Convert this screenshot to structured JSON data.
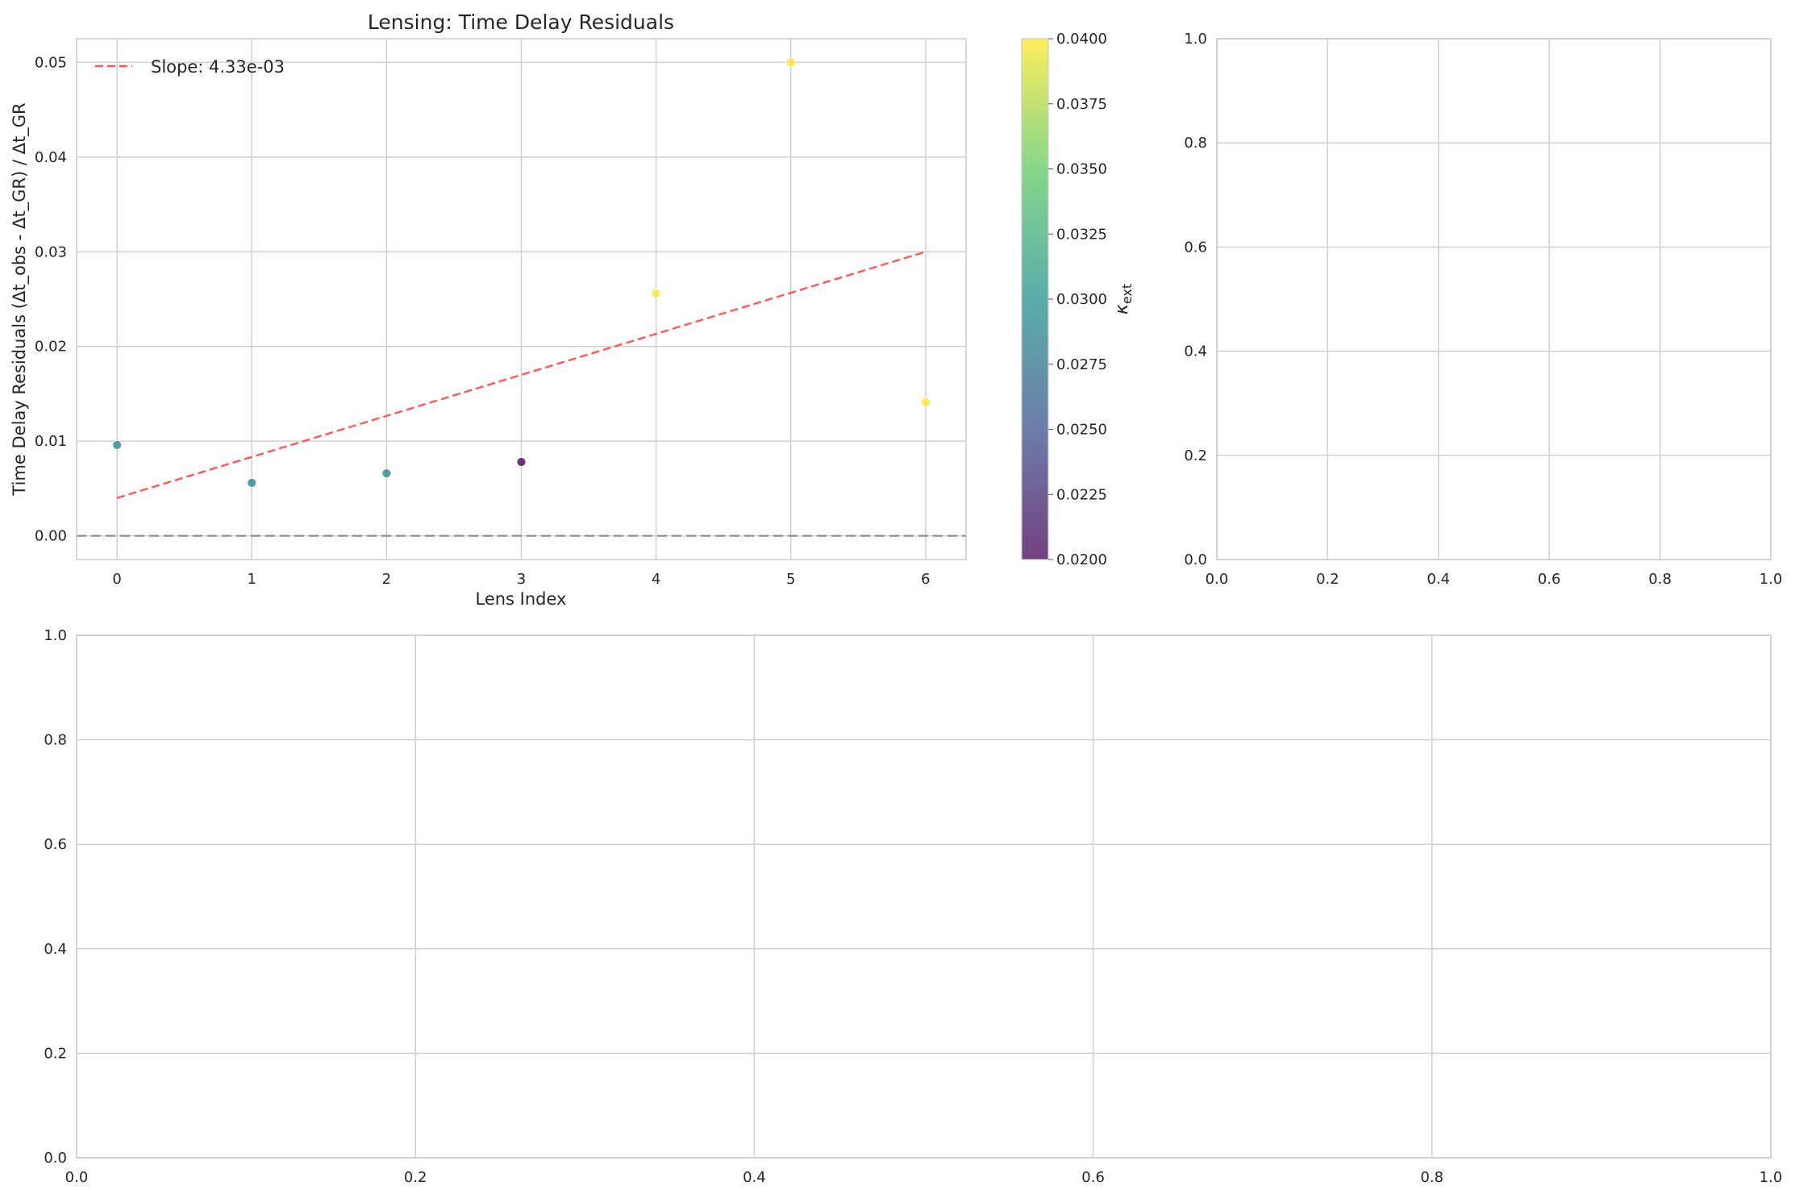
{
  "chart_data": [
    {
      "type": "scatter",
      "title": "Lensing: Time Delay Residuals",
      "xlabel": "Lens Index",
      "ylabel": "Time Delay Residuals (Δt_obs - Δt_GR) / Δt_GR",
      "xlim": [
        -0.3,
        6.3
      ],
      "ylim": [
        -0.0025,
        0.0525
      ],
      "xticks": [
        "0",
        "1",
        "2",
        "3",
        "4",
        "5",
        "6"
      ],
      "yticks": [
        "0.00",
        "0.01",
        "0.02",
        "0.03",
        "0.04",
        "0.05"
      ],
      "grid": true,
      "legend_position": "top-left",
      "points": [
        {
          "x": 0,
          "y": 0.0096,
          "kappa_ext": 0.029
        },
        {
          "x": 1,
          "y": 0.0056,
          "kappa_ext": 0.029
        },
        {
          "x": 2,
          "y": 0.0066,
          "kappa_ext": 0.029
        },
        {
          "x": 3,
          "y": 0.0078,
          "kappa_ext": 0.02
        },
        {
          "x": 4,
          "y": 0.0256,
          "kappa_ext": 0.04
        },
        {
          "x": 5,
          "y": 0.05,
          "kappa_ext": 0.04
        },
        {
          "x": 6,
          "y": 0.0141,
          "kappa_ext": 0.04
        }
      ],
      "fit_line": {
        "label": "Slope: 4.33e-03",
        "x": [
          0,
          6
        ],
        "y": [
          0.004,
          0.03
        ],
        "color": "#ff3b3b"
      },
      "reference_line": {
        "y": 0.0,
        "color": "#808080"
      },
      "colorbar": {
        "label": "κ_ext",
        "range": [
          0.02,
          0.04
        ],
        "ticks": [
          "0.0200",
          "0.0225",
          "0.0250",
          "0.0275",
          "0.0300",
          "0.0325",
          "0.0350",
          "0.0375",
          "0.0400"
        ],
        "colormap": [
          "#440154",
          "#3b528b",
          "#21918c",
          "#5ec962",
          "#fde725"
        ]
      }
    },
    {
      "type": "scatter",
      "title": "",
      "xlabel": "",
      "ylabel": "",
      "xlim": [
        0,
        1
      ],
      "ylim": [
        0,
        1
      ],
      "xticks": [
        "0.0",
        "0.2",
        "0.4",
        "0.6",
        "0.8",
        "1.0"
      ],
      "yticks": [
        "0.0",
        "0.2",
        "0.4",
        "0.6",
        "0.8",
        "1.0"
      ],
      "grid": true,
      "points": []
    },
    {
      "type": "scatter",
      "title": "",
      "xlabel": "",
      "ylabel": "",
      "xlim": [
        0,
        1
      ],
      "ylim": [
        0,
        1
      ],
      "xticks": [
        "0.0",
        "0.2",
        "0.4",
        "0.6",
        "0.8",
        "1.0"
      ],
      "yticks": [
        "0.0",
        "0.2",
        "0.4",
        "0.6",
        "0.8",
        "1.0"
      ],
      "grid": true,
      "points": []
    }
  ]
}
